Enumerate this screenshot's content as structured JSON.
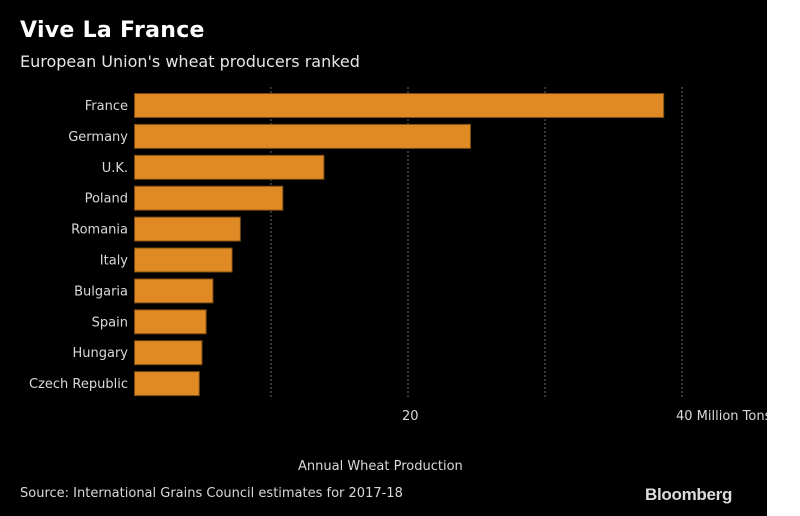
{
  "header": {
    "title": "Vive La France",
    "subtitle": "European Union's wheat producers ranked"
  },
  "footer": {
    "source": "Source: International Grains Council estimates for 2017-18",
    "brand": "Bloomberg"
  },
  "colors": {
    "background": "#000000",
    "bar_fill": "#E08A26",
    "bar_stroke": "#7A4A12",
    "grid": "#6b6b6b",
    "text": "#d9d9d9"
  },
  "chart_data": {
    "type": "bar",
    "orientation": "horizontal",
    "title": "Vive La France",
    "subtitle": "European Union's wheat producers ranked",
    "categories": [
      "France",
      "Germany",
      "U.K.",
      "Poland",
      "Romania",
      "Italy",
      "Bulgaria",
      "Spain",
      "Hungary",
      "Czech Republic"
    ],
    "values": [
      38.7,
      24.6,
      13.9,
      10.9,
      7.8,
      7.2,
      5.8,
      5.3,
      5.0,
      4.8
    ],
    "xlabel": "Annual Wheat Production",
    "ylabel": "",
    "xlim": [
      0,
      45
    ],
    "grid_x": [
      10,
      20,
      30,
      40
    ],
    "xticks": [
      {
        "value": 20,
        "label": "20"
      },
      {
        "value": 40,
        "label": "40 Million Tons"
      }
    ],
    "grid": true,
    "legend": "none",
    "unit": "Million Tons"
  }
}
